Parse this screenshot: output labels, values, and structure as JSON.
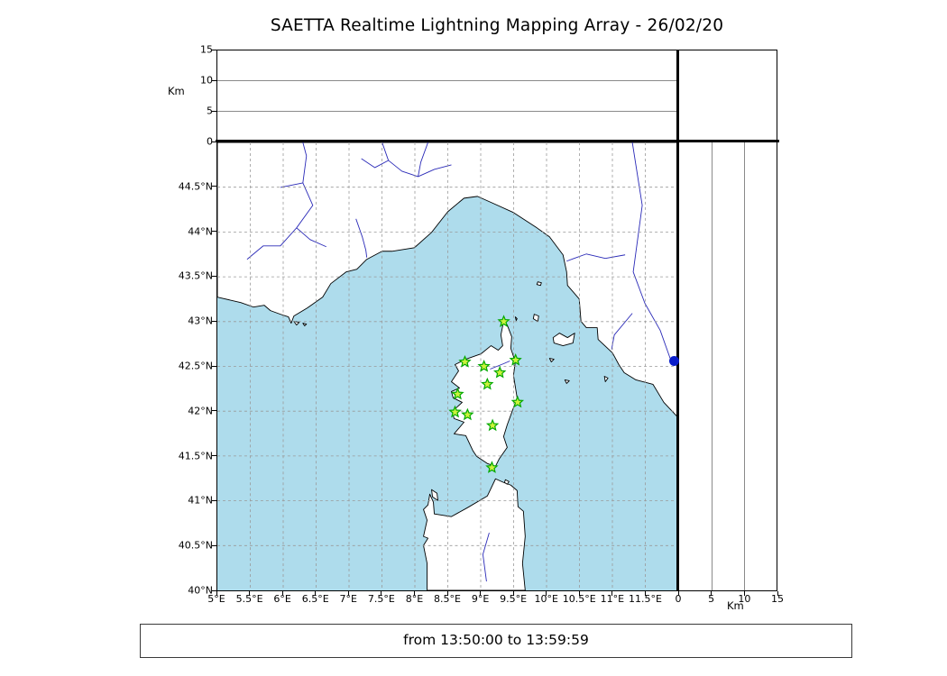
{
  "title": "SAETTA Realtime Lightning Mapping Array - 26/02/20",
  "status": {
    "text": "from 13:50:00 to 13:59:59"
  },
  "chart_data": {
    "type": "scatter",
    "title": "SAETTA Realtime Lightning Mapping Array - 26/02/20",
    "time_window": {
      "from": "13:50:00",
      "to": "13:59:59"
    },
    "map_panel": {
      "lon_range": [
        5,
        12
      ],
      "lat_range": [
        40,
        45
      ],
      "grid": true,
      "lon_ticks": [
        {
          "value": 5,
          "label": "5°E"
        },
        {
          "value": 5.5,
          "label": "5.5°E"
        },
        {
          "value": 6,
          "label": "6°E"
        },
        {
          "value": 6.5,
          "label": "6.5°E"
        },
        {
          "value": 7,
          "label": "7°E"
        },
        {
          "value": 7.5,
          "label": "7.5°E"
        },
        {
          "value": 8,
          "label": "8°E"
        },
        {
          "value": 8.5,
          "label": "8.5°E"
        },
        {
          "value": 9,
          "label": "9°E"
        },
        {
          "value": 9.5,
          "label": "9.5°E"
        },
        {
          "value": 10,
          "label": "10°E"
        },
        {
          "value": 10.5,
          "label": "10.5°E"
        },
        {
          "value": 11,
          "label": "11°E"
        },
        {
          "value": 11.5,
          "label": "11.5°E"
        }
      ],
      "lat_ticks": [
        {
          "value": 44.5,
          "label": "44.5°N"
        },
        {
          "value": 44,
          "label": "44°N"
        },
        {
          "value": 43.5,
          "label": "43.5°N"
        },
        {
          "value": 43,
          "label": "43°N"
        },
        {
          "value": 42.5,
          "label": "42.5°N"
        },
        {
          "value": 42,
          "label": "42°N"
        },
        {
          "value": 41.5,
          "label": "41.5°N"
        },
        {
          "value": 41,
          "label": "41°N"
        },
        {
          "value": 40.5,
          "label": "40.5°N"
        },
        {
          "value": 40,
          "label": "40°N"
        }
      ]
    },
    "altitude_panels": {
      "axis_label": "Km",
      "range": [
        0,
        15
      ],
      "ticks": [
        {
          "value": 0,
          "label": "0"
        },
        {
          "value": 5,
          "label": "5"
        },
        {
          "value": 10,
          "label": "10"
        },
        {
          "value": 15,
          "label": "15"
        }
      ],
      "gridlines_km": [
        5,
        10
      ]
    },
    "stations": {
      "marker": "star",
      "edge_color": "#00a800",
      "fill_color": "#ccf23c",
      "points": [
        {
          "lon": 9.35,
          "lat": 43.0
        },
        {
          "lon": 9.53,
          "lat": 42.57
        },
        {
          "lon": 8.76,
          "lat": 42.55
        },
        {
          "lon": 9.05,
          "lat": 42.5
        },
        {
          "lon": 9.29,
          "lat": 42.43
        },
        {
          "lon": 9.1,
          "lat": 42.3
        },
        {
          "lon": 8.65,
          "lat": 42.19
        },
        {
          "lon": 9.56,
          "lat": 42.1
        },
        {
          "lon": 8.61,
          "lat": 41.99
        },
        {
          "lon": 8.8,
          "lat": 41.96
        },
        {
          "lon": 9.18,
          "lat": 41.84
        },
        {
          "lon": 9.17,
          "lat": 41.37
        }
      ]
    },
    "sources": {
      "marker": "circle",
      "color": "#0a1ecb",
      "points": [
        {
          "lon": 11.94,
          "lat": 42.56,
          "alt_km": 0
        }
      ]
    },
    "colors": {
      "sea": "#aedcec",
      "land": "#ffffff",
      "coast": "#000000",
      "river": "#2a2ab8",
      "grid": "#999999"
    }
  }
}
